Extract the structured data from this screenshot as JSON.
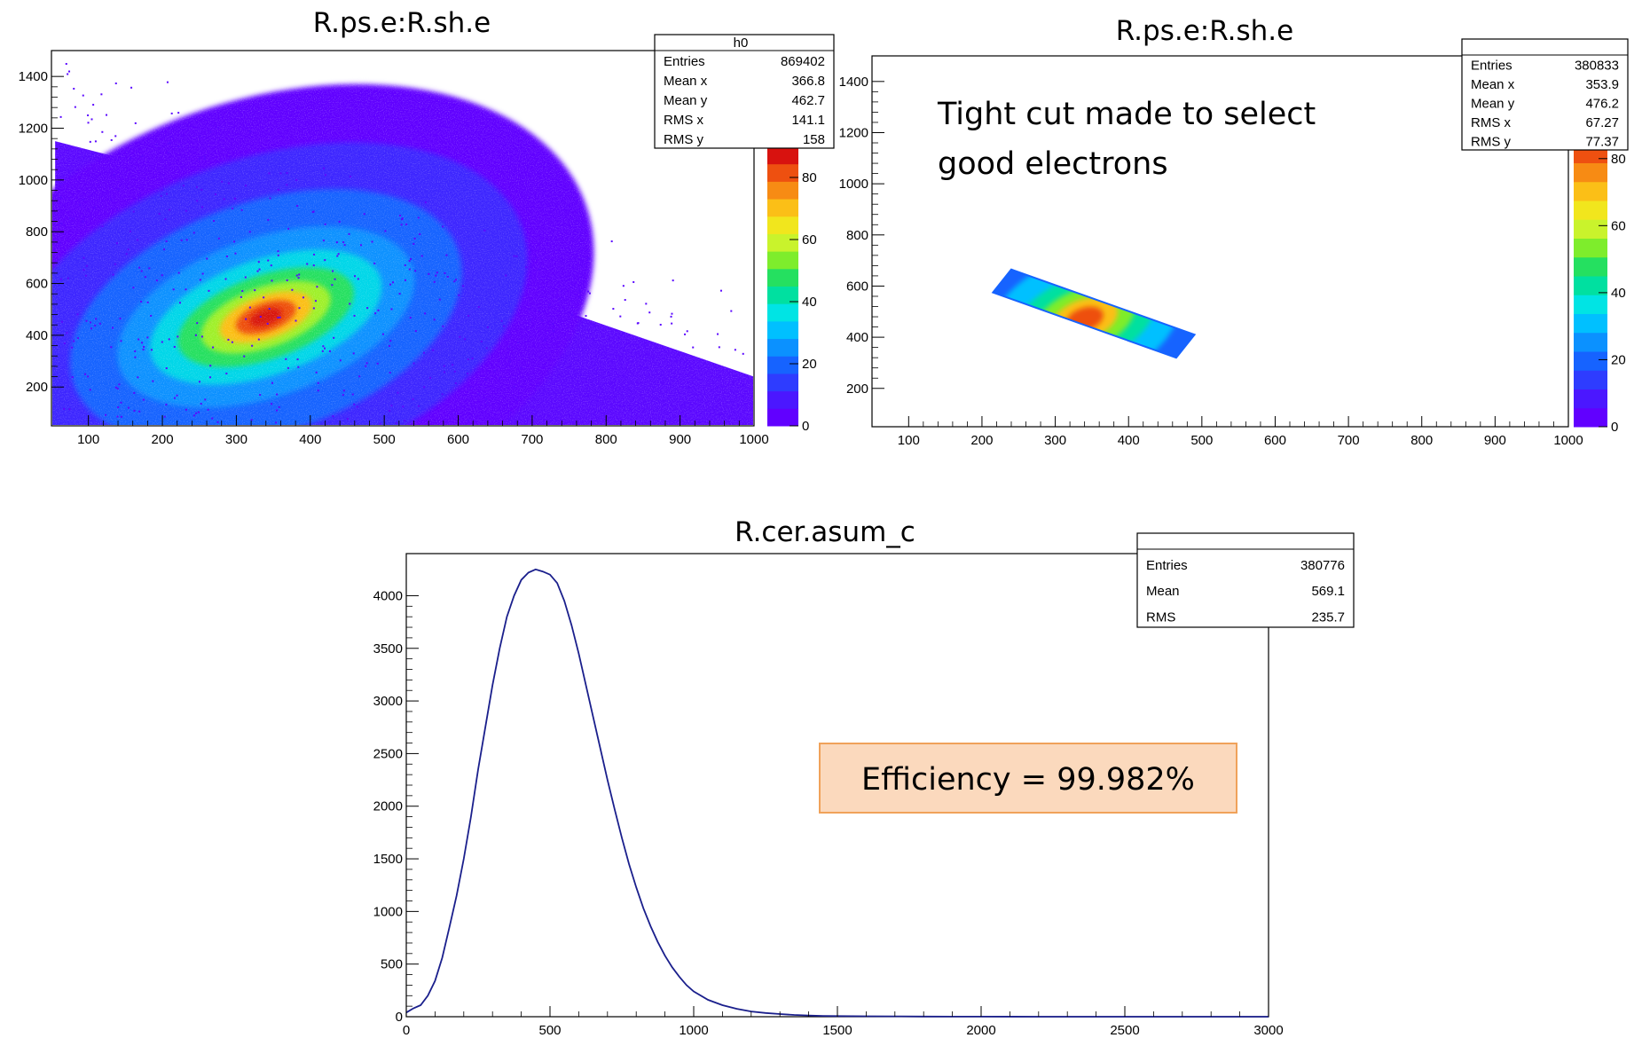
{
  "chart_data": [
    {
      "type": "heatmap",
      "title": "R.ps.e:R.sh.e",
      "xlabel": "",
      "ylabel": "",
      "xlim": [
        50,
        1000
      ],
      "ylim": [
        50,
        1500
      ],
      "xticks": [
        100,
        200,
        300,
        400,
        500,
        600,
        700,
        800,
        900,
        1000
      ],
      "yticks": [
        200,
        400,
        600,
        800,
        1000,
        1200,
        1400
      ],
      "zlim": [
        0,
        90
      ],
      "zticks": [
        0,
        20,
        40,
        60,
        80
      ],
      "cut_region": null,
      "stats": {
        "name": "h0",
        "rows": [
          {
            "label": "Entries",
            "value": "869402"
          },
          {
            "label": "Mean x",
            "value": "366.8"
          },
          {
            "label": "Mean y",
            "value": "462.7"
          },
          {
            "label": "RMS x",
            "value": "141.1"
          },
          {
            "label": "RMS y",
            "value": "158"
          }
        ]
      },
      "annotation": "",
      "grid": false
    },
    {
      "type": "heatmap",
      "title": "R.ps.e:R.sh.e",
      "xlabel": "",
      "ylabel": "",
      "xlim": [
        50,
        1000
      ],
      "ylim": [
        50,
        1500
      ],
      "xticks": [
        100,
        200,
        300,
        400,
        500,
        600,
        700,
        800,
        900,
        1000
      ],
      "yticks": [
        200,
        400,
        600,
        800,
        1000,
        1200,
        1400
      ],
      "zlim": [
        0,
        90
      ],
      "zticks": [
        0,
        20,
        40,
        60,
        80
      ],
      "cut_region": [
        [
          215,
          575
        ],
        [
          240,
          665
        ],
        [
          490,
          410
        ],
        [
          465,
          320
        ]
      ],
      "stats": {
        "name": "",
        "rows": [
          {
            "label": "Entries",
            "value": "380833"
          },
          {
            "label": "Mean x",
            "value": "353.9"
          },
          {
            "label": "Mean y",
            "value": "476.2"
          },
          {
            "label": "RMS x",
            "value": "67.27"
          },
          {
            "label": "RMS y",
            "value": "77.37"
          }
        ]
      },
      "annotation": "Tight cut made to select good electrons",
      "grid": false
    },
    {
      "type": "line",
      "title": "R.cer.asum_c",
      "xlabel": "",
      "ylabel": "",
      "xlim": [
        0,
        3000
      ],
      "ylim": [
        0,
        4400
      ],
      "xticks": [
        0,
        500,
        1000,
        1500,
        2000,
        2500,
        3000
      ],
      "yticks": [
        0,
        500,
        1000,
        1500,
        2000,
        2500,
        3000,
        3500,
        4000
      ],
      "series": [
        {
          "x": [
            0,
            25,
            50,
            75,
            100,
            125,
            150,
            175,
            200,
            225,
            250,
            275,
            300,
            325,
            350,
            375,
            400,
            425,
            450,
            475,
            500,
            525,
            550,
            575,
            600,
            625,
            650,
            675,
            700,
            725,
            750,
            775,
            800,
            825,
            850,
            875,
            900,
            925,
            950,
            975,
            1000,
            1050,
            1100,
            1150,
            1200,
            1250,
            1300,
            1350,
            1400,
            1450,
            1500,
            1600,
            1700,
            1800,
            1900,
            2000,
            2200,
            2400,
            2600,
            2800,
            3000
          ],
          "values": [
            40,
            80,
            110,
            200,
            340,
            560,
            850,
            1150,
            1500,
            1900,
            2350,
            2750,
            3150,
            3500,
            3800,
            4000,
            4150,
            4220,
            4250,
            4230,
            4200,
            4120,
            3950,
            3720,
            3450,
            3150,
            2850,
            2550,
            2250,
            1970,
            1700,
            1450,
            1230,
            1030,
            860,
            710,
            580,
            470,
            380,
            300,
            240,
            160,
            110,
            75,
            50,
            35,
            25,
            17,
            12,
            8,
            6,
            4,
            3,
            2,
            1,
            1,
            0,
            0,
            0,
            0,
            0
          ]
        }
      ],
      "stats": {
        "name": "",
        "rows": [
          {
            "label": "Entries",
            "value": "380776"
          },
          {
            "label": "Mean",
            "value": "569.1"
          },
          {
            "label": "RMS",
            "value": "235.7"
          }
        ]
      },
      "annotation": "Efficiency = 99.982%",
      "annotation_fill": "#fbd9bd",
      "annotation_border": "#f0a25a",
      "line_color": "#1a1f8c",
      "grid": false
    }
  ]
}
